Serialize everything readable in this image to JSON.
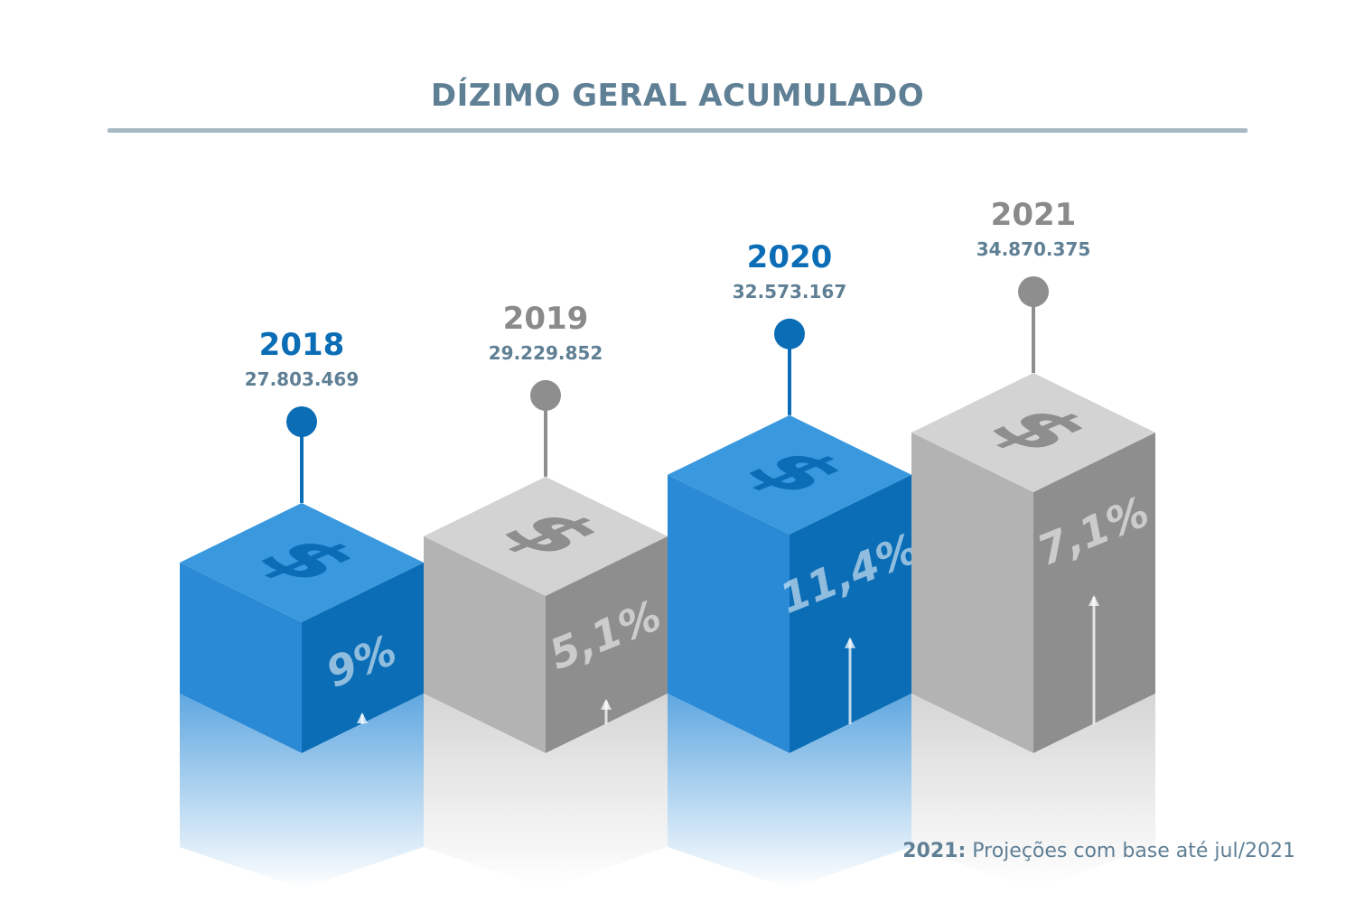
{
  "title": "DÍZIMO GERAL ACUMULADO",
  "chart_data": {
    "type": "bar",
    "title": "DÍZIMO GERAL ACUMULADO",
    "categories": [
      "2018",
      "2019",
      "2020",
      "2021"
    ],
    "values": [
      27803469,
      29229852,
      32573167,
      34870375
    ],
    "value_labels": [
      "27.803.469",
      "29.229.852",
      "32.573.167",
      "34.870.375"
    ],
    "growth_labels": [
      "9%",
      "5,1%",
      "11,4%",
      "7,1%"
    ],
    "bar_colors": [
      "#1f7fc9",
      "#b3b3b3",
      "#1f7fc9",
      "#b3b3b3"
    ],
    "xlabel": "",
    "ylabel": "",
    "grid": false
  },
  "footnote": {
    "year": "2021:",
    "text": " Projeções com base até jul/2021"
  },
  "colors": {
    "title": "#5f7f95",
    "blue_front": "#2a8ad6",
    "blue_side": "#0a6db6",
    "blue_top": "#3a99de",
    "gray_front": "#b3b3b3",
    "gray_side": "#8e8e8e",
    "gray_top": "#d3d3d3",
    "blue_year": "#0a6db6",
    "gray_year": "#8a8a8a",
    "value_text": "#5f7f95"
  }
}
